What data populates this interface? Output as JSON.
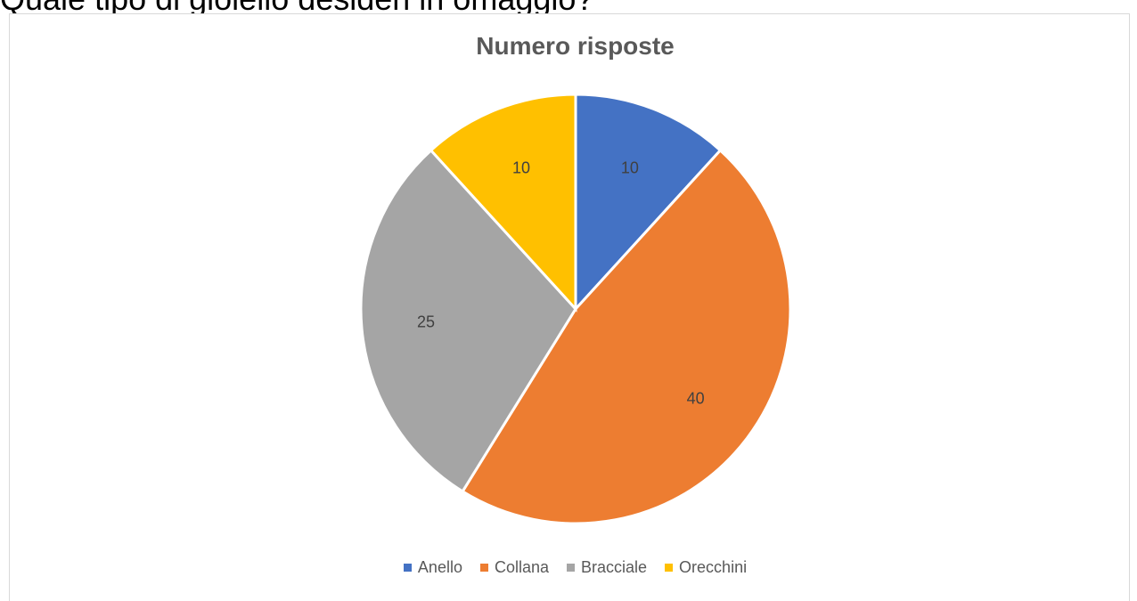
{
  "heading": {
    "text": "Quale tipo di gioiello desideri in omaggio?"
  },
  "chart_data": {
    "type": "pie",
    "title": "Numero risposte",
    "categories": [
      "Anello",
      "Collana",
      "Bracciale",
      "Orecchini"
    ],
    "values": [
      10,
      40,
      25,
      10
    ],
    "data_labels": [
      "10",
      "40",
      "25",
      "10"
    ],
    "colors": [
      "#4472C4",
      "#ED7D31",
      "#A5A5A5",
      "#FFC000"
    ],
    "start_angle": "12 o'clock",
    "direction": "clockwise",
    "legend_position": "bottom"
  }
}
